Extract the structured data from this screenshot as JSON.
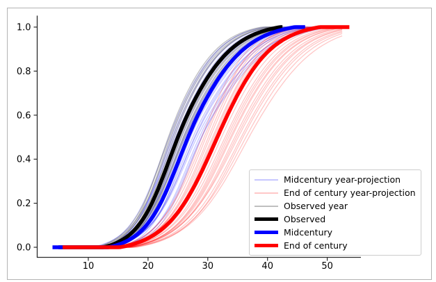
{
  "figure": {
    "background": "#ffffff",
    "border_color": "#b3b3b3",
    "text_color": "#000000",
    "spine_color": "#2a2a2a"
  },
  "chart_data": {
    "type": "line",
    "title": "",
    "xlabel": "",
    "ylabel": "",
    "xlim": [
      1.4,
      55.6
    ],
    "ylim": [
      -0.045,
      1.05
    ],
    "xticks": [
      10,
      20,
      30,
      40,
      50
    ],
    "ytick_labels": [
      "0.0",
      "0.2",
      "0.4",
      "0.6",
      "0.8",
      "1.0"
    ],
    "grid": false,
    "legend": {
      "position": "lower right",
      "entries": [
        {
          "label": "Midcentury year-projection",
          "color": "#0000ff",
          "alpha": 0.22,
          "linewidth": 1.3,
          "swatch": "thin"
        },
        {
          "label": "End of century year-projection",
          "color": "#ff0000",
          "alpha": 0.22,
          "linewidth": 1.3,
          "swatch": "thin"
        },
        {
          "label": "Observed year",
          "color": "#808080",
          "alpha": 0.5,
          "linewidth": 1.3,
          "swatch": "thin"
        },
        {
          "label": "Observed",
          "color": "#000000",
          "alpha": 1.0,
          "linewidth": 5.5,
          "swatch": "thick"
        },
        {
          "label": "Midcentury",
          "color": "#0000ff",
          "alpha": 1.0,
          "linewidth": 5.5,
          "swatch": "thick"
        },
        {
          "label": "End of century",
          "color": "#ff0000",
          "alpha": 1.0,
          "linewidth": 5.5,
          "swatch": "thick"
        }
      ]
    },
    "series": [
      {
        "name": "Observed",
        "color": "#000000",
        "linewidth": 5.5,
        "alpha": 1.0,
        "median": 25.0,
        "scale_left": 3.2,
        "scale_right": 4.4,
        "x_start": 5.0,
        "x_end": 42.5,
        "key_points": {
          "cdf": [
            0.01,
            0.1,
            0.25,
            0.5,
            0.75,
            0.9,
            0.99
          ],
          "x": [
            13.8,
            18.5,
            21.7,
            25.0,
            29.6,
            33.9,
            40.4
          ]
        }
      },
      {
        "name": "Midcentury",
        "color": "#0000ff",
        "linewidth": 5.5,
        "alpha": 1.0,
        "median": 26.7,
        "scale_left": 3.4,
        "scale_right": 4.6,
        "x_start": 4.0,
        "x_end": 46.3,
        "key_points": {
          "cdf": [
            0.01,
            0.1,
            0.25,
            0.5,
            0.75,
            0.9,
            0.99
          ],
          "x": [
            14.8,
            19.8,
            23.1,
            26.7,
            31.5,
            36.0,
            42.8
          ]
        }
      },
      {
        "name": "End of century",
        "color": "#ff0000",
        "linewidth": 5.5,
        "alpha": 1.0,
        "median": 31.6,
        "scale_left": 4.2,
        "scale_right": 4.4,
        "x_start": 5.7,
        "x_end": 53.7,
        "key_points": {
          "cdf": [
            0.01,
            0.1,
            0.25,
            0.5,
            0.75,
            0.9,
            0.99
          ],
          "x": [
            16.9,
            23.1,
            27.2,
            31.6,
            36.2,
            40.5,
            47.0
          ]
        }
      }
    ],
    "ensembles": [
      {
        "name": "Midcentury year-projection",
        "color": "#0000ff",
        "alpha": 0.22,
        "linewidth": 1.3,
        "x_start": 4.0,
        "x_end_max": 49,
        "members": [
          [
            24.1,
            3.1,
            4.2
          ],
          [
            27.8,
            3.6,
            5.0
          ],
          [
            25.3,
            3.0,
            4.4
          ],
          [
            26.2,
            3.7,
            4.8
          ],
          [
            23.5,
            3.2,
            4.1
          ],
          [
            28.6,
            3.5,
            5.3
          ],
          [
            25.9,
            3.4,
            4.6
          ],
          [
            27.1,
            3.1,
            5.0
          ],
          [
            24.6,
            3.6,
            4.3
          ],
          [
            26.9,
            3.3,
            4.9
          ],
          [
            23.9,
            3.0,
            4.0
          ],
          [
            28.2,
            3.8,
            5.5
          ],
          [
            25.1,
            3.3,
            4.5
          ],
          [
            27.5,
            3.5,
            5.1
          ],
          [
            24.3,
            3.2,
            4.2
          ],
          [
            26.5,
            3.6,
            4.7
          ],
          [
            29.0,
            3.4,
            5.6
          ],
          [
            25.6,
            3.1,
            4.4
          ],
          [
            27.9,
            3.7,
            5.2
          ],
          [
            24.9,
            3.3,
            4.3
          ],
          [
            26.1,
            3.0,
            4.8
          ],
          [
            28.9,
            3.6,
            5.4
          ]
        ]
      },
      {
        "name": "End of century year-projection",
        "color": "#ff0000",
        "alpha": 0.22,
        "linewidth": 1.3,
        "x_start": 5.7,
        "x_end_max": 52.5,
        "members": [
          [
            29.4,
            3.9,
            4.1
          ],
          [
            33.8,
            4.4,
            4.9
          ],
          [
            31.2,
            4.0,
            4.3
          ],
          [
            35.6,
            4.7,
            5.2
          ],
          [
            30.1,
            3.8,
            4.0
          ],
          [
            32.9,
            4.3,
            4.7
          ],
          [
            36.4,
            4.9,
            5.4
          ],
          [
            30.8,
            4.1,
            4.2
          ],
          [
            34.5,
            4.5,
            5.0
          ],
          [
            29.0,
            3.7,
            3.9
          ],
          [
            33.2,
            4.2,
            4.8
          ],
          [
            35.1,
            4.8,
            5.1
          ],
          [
            31.7,
            4.0,
            4.4
          ],
          [
            36.9,
            5.0,
            5.6
          ],
          [
            30.4,
            3.9,
            4.1
          ],
          [
            34.0,
            4.4,
            4.9
          ],
          [
            32.3,
            4.1,
            4.6
          ],
          [
            35.9,
            4.6,
            5.3
          ],
          [
            29.7,
            3.8,
            4.0
          ],
          [
            33.5,
            4.3,
            4.8
          ],
          [
            31.0,
            4.0,
            4.2
          ],
          [
            34.8,
            4.6,
            5.1
          ]
        ]
      },
      {
        "name": "Observed year",
        "color": "#808080",
        "alpha": 0.5,
        "linewidth": 1.3,
        "x_start": 5.0,
        "x_end_max": 44,
        "members": [
          [
            23.8,
            3.0,
            4.2
          ],
          [
            25.6,
            3.3,
            4.6
          ],
          [
            24.4,
            3.1,
            4.1
          ],
          [
            26.0,
            3.4,
            4.8
          ],
          [
            23.4,
            2.9,
            4.0
          ],
          [
            25.2,
            3.2,
            4.5
          ],
          [
            24.8,
            3.5,
            4.3
          ],
          [
            25.9,
            3.1,
            4.7
          ],
          [
            24.1,
            3.3,
            4.2
          ],
          [
            25.4,
            3.0,
            4.6
          ],
          [
            23.6,
            3.2,
            4.1
          ],
          [
            26.2,
            3.5,
            4.9
          ]
        ]
      }
    ]
  }
}
